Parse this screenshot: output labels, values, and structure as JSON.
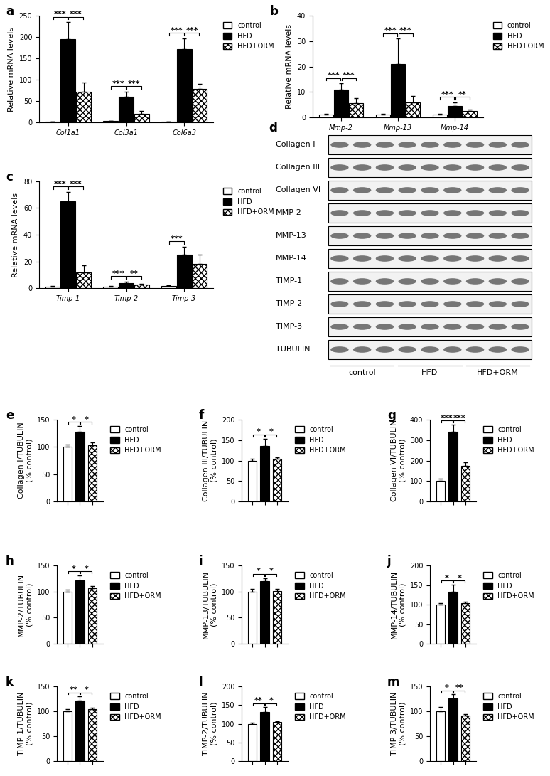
{
  "chart_data": [
    {
      "type": "bar",
      "panel": "a",
      "ylabel": "Relative mRNA levels",
      "categories": [
        "Col1a1",
        "Col3a1",
        "Col6a3"
      ],
      "series": [
        {
          "name": "control",
          "color": "#ffffff",
          "values": [
            1,
            3,
            1
          ],
          "errors": [
            0.5,
            1,
            0.5
          ]
        },
        {
          "name": "HFD",
          "color": "#000000",
          "values": [
            195,
            60,
            172
          ],
          "errors": [
            40,
            12,
            25
          ]
        },
        {
          "name": "HFD+ORM",
          "color": "#ffffff",
          "values": [
            72,
            20,
            78
          ],
          "errors": [
            22,
            6,
            12
          ]
        }
      ],
      "ylim": [
        0,
        250
      ],
      "yticks": [
        0,
        50,
        100,
        150,
        200,
        250
      ],
      "legend": "outside right",
      "significance": [
        {
          "category": 0,
          "between": [
            "control",
            "HFD"
          ],
          "text": "***"
        },
        {
          "category": 0,
          "between": [
            "HFD",
            "HFD+ORM"
          ],
          "text": "***"
        },
        {
          "category": 1,
          "between": [
            "control",
            "HFD"
          ],
          "text": "***"
        },
        {
          "category": 1,
          "between": [
            "HFD",
            "HFD+ORM"
          ],
          "text": "***"
        },
        {
          "category": 2,
          "between": [
            "control",
            "HFD"
          ],
          "text": "***"
        },
        {
          "category": 2,
          "between": [
            "HFD",
            "HFD+ORM"
          ],
          "text": "***"
        }
      ]
    },
    {
      "type": "bar",
      "panel": "b",
      "ylabel": "Relative mRNA levels",
      "categories": [
        "Mmp-2",
        "Mmp-13",
        "Mmp-14"
      ],
      "series": [
        {
          "name": "control",
          "color": "#ffffff",
          "values": [
            1,
            1,
            1
          ],
          "errors": [
            0.5,
            0.5,
            0.5
          ]
        },
        {
          "name": "HFD",
          "color": "#000000",
          "values": [
            11,
            21,
            4.5
          ],
          "errors": [
            2.5,
            10,
            1.5
          ]
        },
        {
          "name": "HFD+ORM",
          "color": "#ffffff",
          "values": [
            5.5,
            6,
            2.5
          ],
          "errors": [
            2,
            2.5,
            0.7
          ]
        }
      ],
      "ylim": [
        0,
        40
      ],
      "yticks": [
        0,
        10,
        20,
        30,
        40
      ],
      "legend": "outside right",
      "significance": [
        {
          "category": 0,
          "between": [
            "control",
            "HFD"
          ],
          "text": "***"
        },
        {
          "category": 0,
          "between": [
            "HFD",
            "HFD+ORM"
          ],
          "text": "***"
        },
        {
          "category": 1,
          "between": [
            "control",
            "HFD"
          ],
          "text": "***"
        },
        {
          "category": 1,
          "between": [
            "HFD",
            "HFD+ORM"
          ],
          "text": "***"
        },
        {
          "category": 2,
          "between": [
            "control",
            "HFD"
          ],
          "text": "***"
        },
        {
          "category": 2,
          "between": [
            "HFD",
            "HFD+ORM"
          ],
          "text": "**"
        }
      ]
    },
    {
      "type": "bar",
      "panel": "c",
      "ylabel": "Relative mRNA levels",
      "categories": [
        "Timp-1",
        "Timp-2",
        "Timp-3"
      ],
      "series": [
        {
          "name": "control",
          "color": "#ffffff",
          "values": [
            1,
            1,
            1.5
          ],
          "errors": [
            0.5,
            0.5,
            0.8
          ]
        },
        {
          "name": "HFD",
          "color": "#000000",
          "values": [
            65,
            4,
            25
          ],
          "errors": [
            7,
            1,
            6
          ]
        },
        {
          "name": "HFD+ORM",
          "color": "#ffffff",
          "values": [
            12,
            2.5,
            18
          ],
          "errors": [
            5,
            0.7,
            7
          ]
        }
      ],
      "ylim": [
        0,
        80
      ],
      "yticks": [
        0,
        20,
        40,
        60,
        80
      ],
      "legend": "outside right",
      "significance": [
        {
          "category": 0,
          "between": [
            "control",
            "HFD"
          ],
          "text": "***"
        },
        {
          "category": 0,
          "between": [
            "HFD",
            "HFD+ORM"
          ],
          "text": "***"
        },
        {
          "category": 1,
          "between": [
            "control",
            "HFD"
          ],
          "text": "***"
        },
        {
          "category": 1,
          "between": [
            "HFD",
            "HFD+ORM"
          ],
          "text": "**"
        },
        {
          "category": 2,
          "between": [
            "control",
            "HFD"
          ],
          "text": "***"
        }
      ]
    },
    {
      "type": "bar",
      "panel": "e",
      "ylabel": "Collagen I/TUBULIN\n(% control)",
      "categories": [
        null
      ],
      "series": [
        {
          "name": "control",
          "color": "#ffffff",
          "values": [
            100
          ],
          "errors": [
            4
          ]
        },
        {
          "name": "HFD",
          "color": "#000000",
          "values": [
            128
          ],
          "errors": [
            10
          ]
        },
        {
          "name": "HFD+ORM",
          "color": "#ffffff",
          "values": [
            103
          ],
          "errors": [
            5
          ]
        }
      ],
      "ylim": [
        0,
        150
      ],
      "yticks": [
        0,
        50,
        100,
        150
      ],
      "legend": "outside right",
      "significance": [
        {
          "category": 0,
          "between": [
            "control",
            "HFD"
          ],
          "text": "*"
        },
        {
          "category": 0,
          "between": [
            "HFD",
            "HFD+ORM"
          ],
          "text": "*"
        }
      ]
    },
    {
      "type": "bar",
      "panel": "f",
      "ylabel": "Collagen III/TUBULIN\n(% control)",
      "categories": [
        null
      ],
      "series": [
        {
          "name": "control",
          "color": "#ffffff",
          "values": [
            100
          ],
          "errors": [
            4
          ]
        },
        {
          "name": "HFD",
          "color": "#000000",
          "values": [
            135
          ],
          "errors": [
            18
          ]
        },
        {
          "name": "HFD+ORM",
          "color": "#ffffff",
          "values": [
            105
          ],
          "errors": [
            3
          ]
        }
      ],
      "ylim": [
        0,
        200
      ],
      "yticks": [
        0,
        50,
        100,
        150,
        200
      ],
      "legend": "outside right",
      "significance": [
        {
          "category": 0,
          "between": [
            "control",
            "HFD"
          ],
          "text": "*"
        },
        {
          "category": 0,
          "between": [
            "HFD",
            "HFD+ORM"
          ],
          "text": "*"
        }
      ]
    },
    {
      "type": "bar",
      "panel": "g",
      "ylabel": "Collagen VI/TUBULIN\n(% control)",
      "categories": [
        null
      ],
      "series": [
        {
          "name": "control",
          "color": "#ffffff",
          "values": [
            100
          ],
          "errors": [
            10
          ]
        },
        {
          "name": "HFD",
          "color": "#000000",
          "values": [
            340
          ],
          "errors": [
            35
          ]
        },
        {
          "name": "HFD+ORM",
          "color": "#ffffff",
          "values": [
            175
          ],
          "errors": [
            18
          ]
        }
      ],
      "ylim": [
        0,
        400
      ],
      "yticks": [
        0,
        100,
        200,
        300,
        400
      ],
      "legend": "outside right",
      "significance": [
        {
          "category": 0,
          "between": [
            "control",
            "HFD"
          ],
          "text": "***"
        },
        {
          "category": 0,
          "between": [
            "HFD",
            "HFD+ORM"
          ],
          "text": "***"
        }
      ]
    },
    {
      "type": "bar",
      "panel": "h",
      "ylabel": "MMP-2/TUBULIN\n(% control)",
      "categories": [
        null
      ],
      "series": [
        {
          "name": "control",
          "color": "#ffffff",
          "values": [
            100
          ],
          "errors": [
            3
          ]
        },
        {
          "name": "HFD",
          "color": "#000000",
          "values": [
            122
          ],
          "errors": [
            9
          ]
        },
        {
          "name": "HFD+ORM",
          "color": "#ffffff",
          "values": [
            106
          ],
          "errors": [
            5
          ]
        }
      ],
      "ylim": [
        0,
        150
      ],
      "yticks": [
        0,
        50,
        100,
        150
      ],
      "legend": "outside right",
      "significance": [
        {
          "category": 0,
          "between": [
            "control",
            "HFD"
          ],
          "text": "*"
        },
        {
          "category": 0,
          "between": [
            "HFD",
            "HFD+ORM"
          ],
          "text": "*"
        }
      ]
    },
    {
      "type": "bar",
      "panel": "i",
      "ylabel": "MMP-13/TUBULIN\n(% control)",
      "categories": [
        null
      ],
      "series": [
        {
          "name": "control",
          "color": "#ffffff",
          "values": [
            100
          ],
          "errors": [
            5
          ]
        },
        {
          "name": "HFD",
          "color": "#000000",
          "values": [
            120
          ],
          "errors": [
            6
          ]
        },
        {
          "name": "HFD+ORM",
          "color": "#ffffff",
          "values": [
            101
          ],
          "errors": [
            4
          ]
        }
      ],
      "ylim": [
        0,
        150
      ],
      "yticks": [
        0,
        50,
        100,
        150
      ],
      "legend": "outside right",
      "significance": [
        {
          "category": 0,
          "between": [
            "control",
            "HFD"
          ],
          "text": "*"
        },
        {
          "category": 0,
          "between": [
            "HFD",
            "HFD+ORM"
          ],
          "text": "*"
        }
      ]
    },
    {
      "type": "bar",
      "panel": "j",
      "ylabel": "MMP-14/TUBULIN\n(% control)",
      "categories": [
        null
      ],
      "series": [
        {
          "name": "control",
          "color": "#ffffff",
          "values": [
            100
          ],
          "errors": [
            4
          ]
        },
        {
          "name": "HFD",
          "color": "#000000",
          "values": [
            133
          ],
          "errors": [
            18
          ]
        },
        {
          "name": "HFD+ORM",
          "color": "#ffffff",
          "values": [
            104
          ],
          "errors": [
            4
          ]
        }
      ],
      "ylim": [
        0,
        200
      ],
      "yticks": [
        0,
        50,
        100,
        150,
        200
      ],
      "legend": "outside right",
      "significance": [
        {
          "category": 0,
          "between": [
            "control",
            "HFD"
          ],
          "text": "*"
        },
        {
          "category": 0,
          "between": [
            "HFD",
            "HFD+ORM"
          ],
          "text": "*"
        }
      ]
    },
    {
      "type": "bar",
      "panel": "k",
      "ylabel": "TIMP-1/TUBULIN\n(% control)",
      "categories": [
        null
      ],
      "series": [
        {
          "name": "control",
          "color": "#ffffff",
          "values": [
            100
          ],
          "errors": [
            4
          ]
        },
        {
          "name": "HFD",
          "color": "#000000",
          "values": [
            122
          ],
          "errors": [
            8
          ]
        },
        {
          "name": "HFD+ORM",
          "color": "#ffffff",
          "values": [
            104
          ],
          "errors": [
            3
          ]
        }
      ],
      "ylim": [
        0,
        150
      ],
      "yticks": [
        0,
        50,
        100,
        150
      ],
      "legend": "outside right",
      "significance": [
        {
          "category": 0,
          "between": [
            "control",
            "HFD"
          ],
          "text": "**"
        },
        {
          "category": 0,
          "between": [
            "HFD",
            "HFD+ORM"
          ],
          "text": "*"
        }
      ]
    },
    {
      "type": "bar",
      "panel": "l",
      "ylabel": "TIMP-2/TUBULIN\n(% control)",
      "categories": [
        null
      ],
      "series": [
        {
          "name": "control",
          "color": "#ffffff",
          "values": [
            100
          ],
          "errors": [
            2
          ]
        },
        {
          "name": "HFD",
          "color": "#000000",
          "values": [
            132
          ],
          "errors": [
            13
          ]
        },
        {
          "name": "HFD+ORM",
          "color": "#ffffff",
          "values": [
            105
          ],
          "errors": [
            2
          ]
        }
      ],
      "ylim": [
        0,
        200
      ],
      "yticks": [
        0,
        50,
        100,
        150,
        200
      ],
      "legend": "outside right",
      "significance": [
        {
          "category": 0,
          "between": [
            "control",
            "HFD"
          ],
          "text": "**"
        },
        {
          "category": 0,
          "between": [
            "HFD",
            "HFD+ORM"
          ],
          "text": "*"
        }
      ]
    },
    {
      "type": "bar",
      "panel": "m",
      "ylabel": "TIMP-3/TUBULIN\n(% control)",
      "categories": [
        null
      ],
      "series": [
        {
          "name": "control",
          "color": "#ffffff",
          "values": [
            100
          ],
          "errors": [
            9
          ]
        },
        {
          "name": "HFD",
          "color": "#000000",
          "values": [
            126
          ],
          "errors": [
            8
          ]
        },
        {
          "name": "HFD+ORM",
          "color": "#ffffff",
          "values": [
            92
          ],
          "errors": [
            3
          ]
        }
      ],
      "ylim": [
        0,
        150
      ],
      "yticks": [
        0,
        50,
        100,
        150
      ],
      "legend": "outside right",
      "significance": [
        {
          "category": 0,
          "between": [
            "control",
            "HFD"
          ],
          "text": "*"
        },
        {
          "category": 0,
          "between": [
            "HFD",
            "HFD+ORM"
          ],
          "text": "**"
        }
      ]
    }
  ],
  "blot": {
    "panel": "d",
    "rows": [
      "Collagen I",
      "Collagen III",
      "Collagen VI",
      "MMP-2",
      "MMP-13",
      "MMP-14",
      "TIMP-1",
      "TIMP-2",
      "TIMP-3",
      "TUBULIN"
    ],
    "groups": [
      "control",
      "HFD",
      "HFD+ORM"
    ],
    "lanes_per_group": 3
  }
}
